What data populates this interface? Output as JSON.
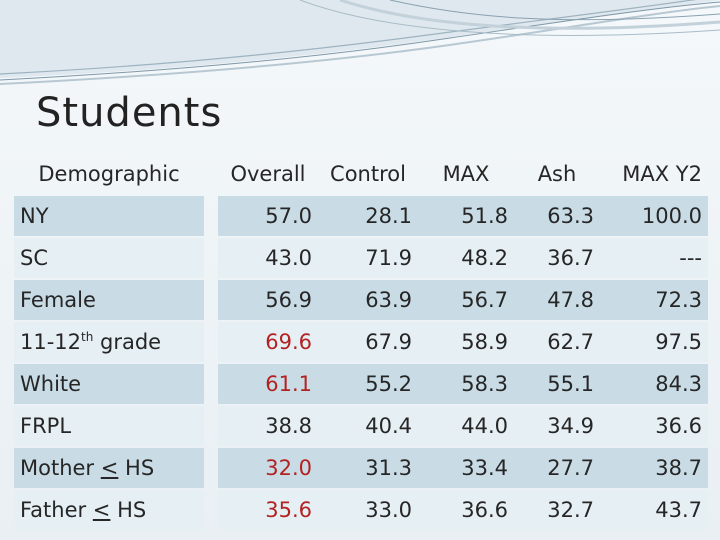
{
  "slide": {
    "title": "Students"
  },
  "table": {
    "headers": [
      "Demographic",
      "Overall",
      "Control",
      "MAX",
      "Ash",
      "MAX Y2"
    ],
    "rows": [
      {
        "label_pre": "NY",
        "label_sup": "",
        "label_post": "",
        "label_u": "",
        "label_tail": "",
        "values": [
          "57.0",
          "28.1",
          "51.8",
          "63.3",
          "100.0"
        ],
        "overall_red": false
      },
      {
        "label_pre": "SC",
        "label_sup": "",
        "label_post": "",
        "label_u": "",
        "label_tail": "",
        "values": [
          "43.0",
          "71.9",
          "48.2",
          "36.7",
          "---"
        ],
        "overall_red": false
      },
      {
        "label_pre": "Female",
        "label_sup": "",
        "label_post": "",
        "label_u": "",
        "label_tail": "",
        "values": [
          "56.9",
          "63.9",
          "56.7",
          "47.8",
          "72.3"
        ],
        "overall_red": false
      },
      {
        "label_pre": "11-12",
        "label_sup": "th",
        "label_post": " grade",
        "label_u": "",
        "label_tail": "",
        "values": [
          "69.6",
          "67.9",
          "58.9",
          "62.7",
          "97.5"
        ],
        "overall_red": true
      },
      {
        "label_pre": "White",
        "label_sup": "",
        "label_post": "",
        "label_u": "",
        "label_tail": "",
        "values": [
          "61.1",
          "55.2",
          "58.3",
          "55.1",
          "84.3"
        ],
        "overall_red": true
      },
      {
        "label_pre": "FRPL",
        "label_sup": "",
        "label_post": "",
        "label_u": "",
        "label_tail": "",
        "values": [
          "38.8",
          "40.4",
          "44.0",
          "34.9",
          "36.6"
        ],
        "overall_red": false
      },
      {
        "label_pre": "Mother ",
        "label_sup": "",
        "label_post": "",
        "label_u": "<",
        "label_tail": " HS",
        "values": [
          "32.0",
          "31.3",
          "33.4",
          "27.7",
          "38.7"
        ],
        "overall_red": true
      },
      {
        "label_pre": "Father ",
        "label_sup": "",
        "label_post": "",
        "label_u": "<",
        "label_tail": " HS",
        "values": [
          "35.6",
          "33.0",
          "36.6",
          "32.7",
          "43.7"
        ],
        "overall_red": true
      }
    ]
  },
  "colors": {
    "highlight_red": "#b22222",
    "row_dark": "#c9dce6",
    "row_light": "#e6eff4"
  }
}
